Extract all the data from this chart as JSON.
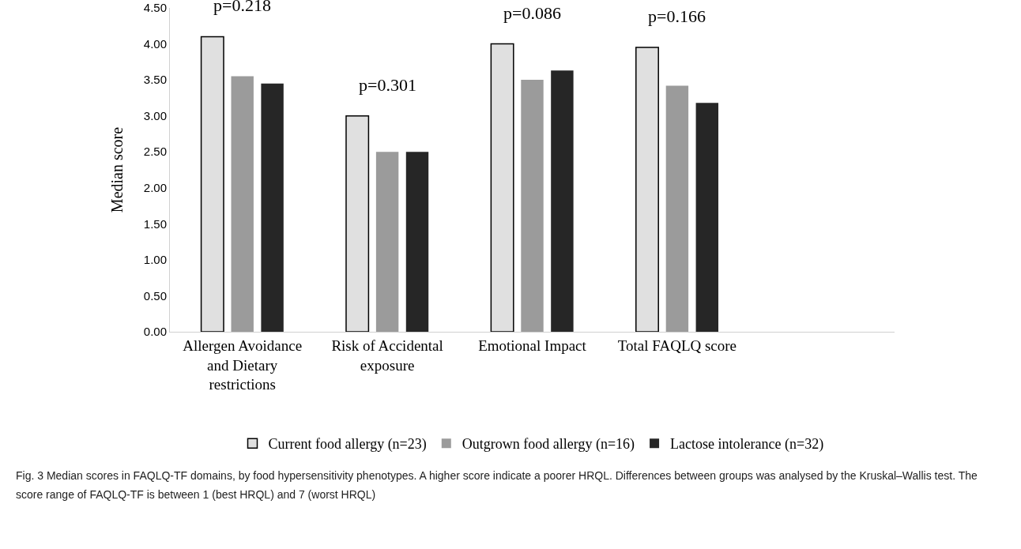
{
  "chart_data": {
    "type": "bar",
    "ylabel": "Median score",
    "categories": [
      "Allergen Avoidance and Dietary restrictions",
      "Risk of Accidental exposure",
      "Emotional Impact",
      "Total FAQLQ score"
    ],
    "series": [
      {
        "name": "Current food allergy (n=23)",
        "color": "#e0e0e0",
        "values": [
          4.1,
          3.0,
          4.0,
          3.95
        ]
      },
      {
        "name": "Outgrown food allergy (n=16)",
        "color": "#9b9b9b",
        "values": [
          3.55,
          2.5,
          3.5,
          3.42
        ]
      },
      {
        "name": "Lactose intolerance (n=32)",
        "color": "#262626",
        "values": [
          3.45,
          2.5,
          3.63,
          3.18
        ]
      }
    ],
    "ylim": [
      0,
      4.5
    ],
    "yticks": [
      {
        "value": 0,
        "label": "0.00"
      },
      {
        "value": 0.5,
        "label": "0.50"
      },
      {
        "value": 1,
        "label": "1.00"
      },
      {
        "value": 1.5,
        "label": "1.50"
      },
      {
        "value": 2,
        "label": "2.00"
      },
      {
        "value": 2.5,
        "label": "2.50"
      },
      {
        "value": 3,
        "label": "3.00"
      },
      {
        "value": 3.5,
        "label": "3.50"
      },
      {
        "value": 4,
        "label": "4.00"
      },
      {
        "value": 4.5,
        "label": "4.50"
      }
    ],
    "grid": false,
    "legend": "bottom",
    "annotations": [
      "p=0.218",
      "p=0.301",
      "p=0.086",
      "p=0.166",
      "Fig. 3 Median scores in FAQLQ-TF domains, by food hypersensitivity phenotypes. A higher score indicate a poorer HRQL. Differences between groups was analysed by the Kruskal–Wallis test. The score range of FAQLQ-TF is between 1 (best HRQL) and 7 (worst HRQL)"
    ]
  }
}
